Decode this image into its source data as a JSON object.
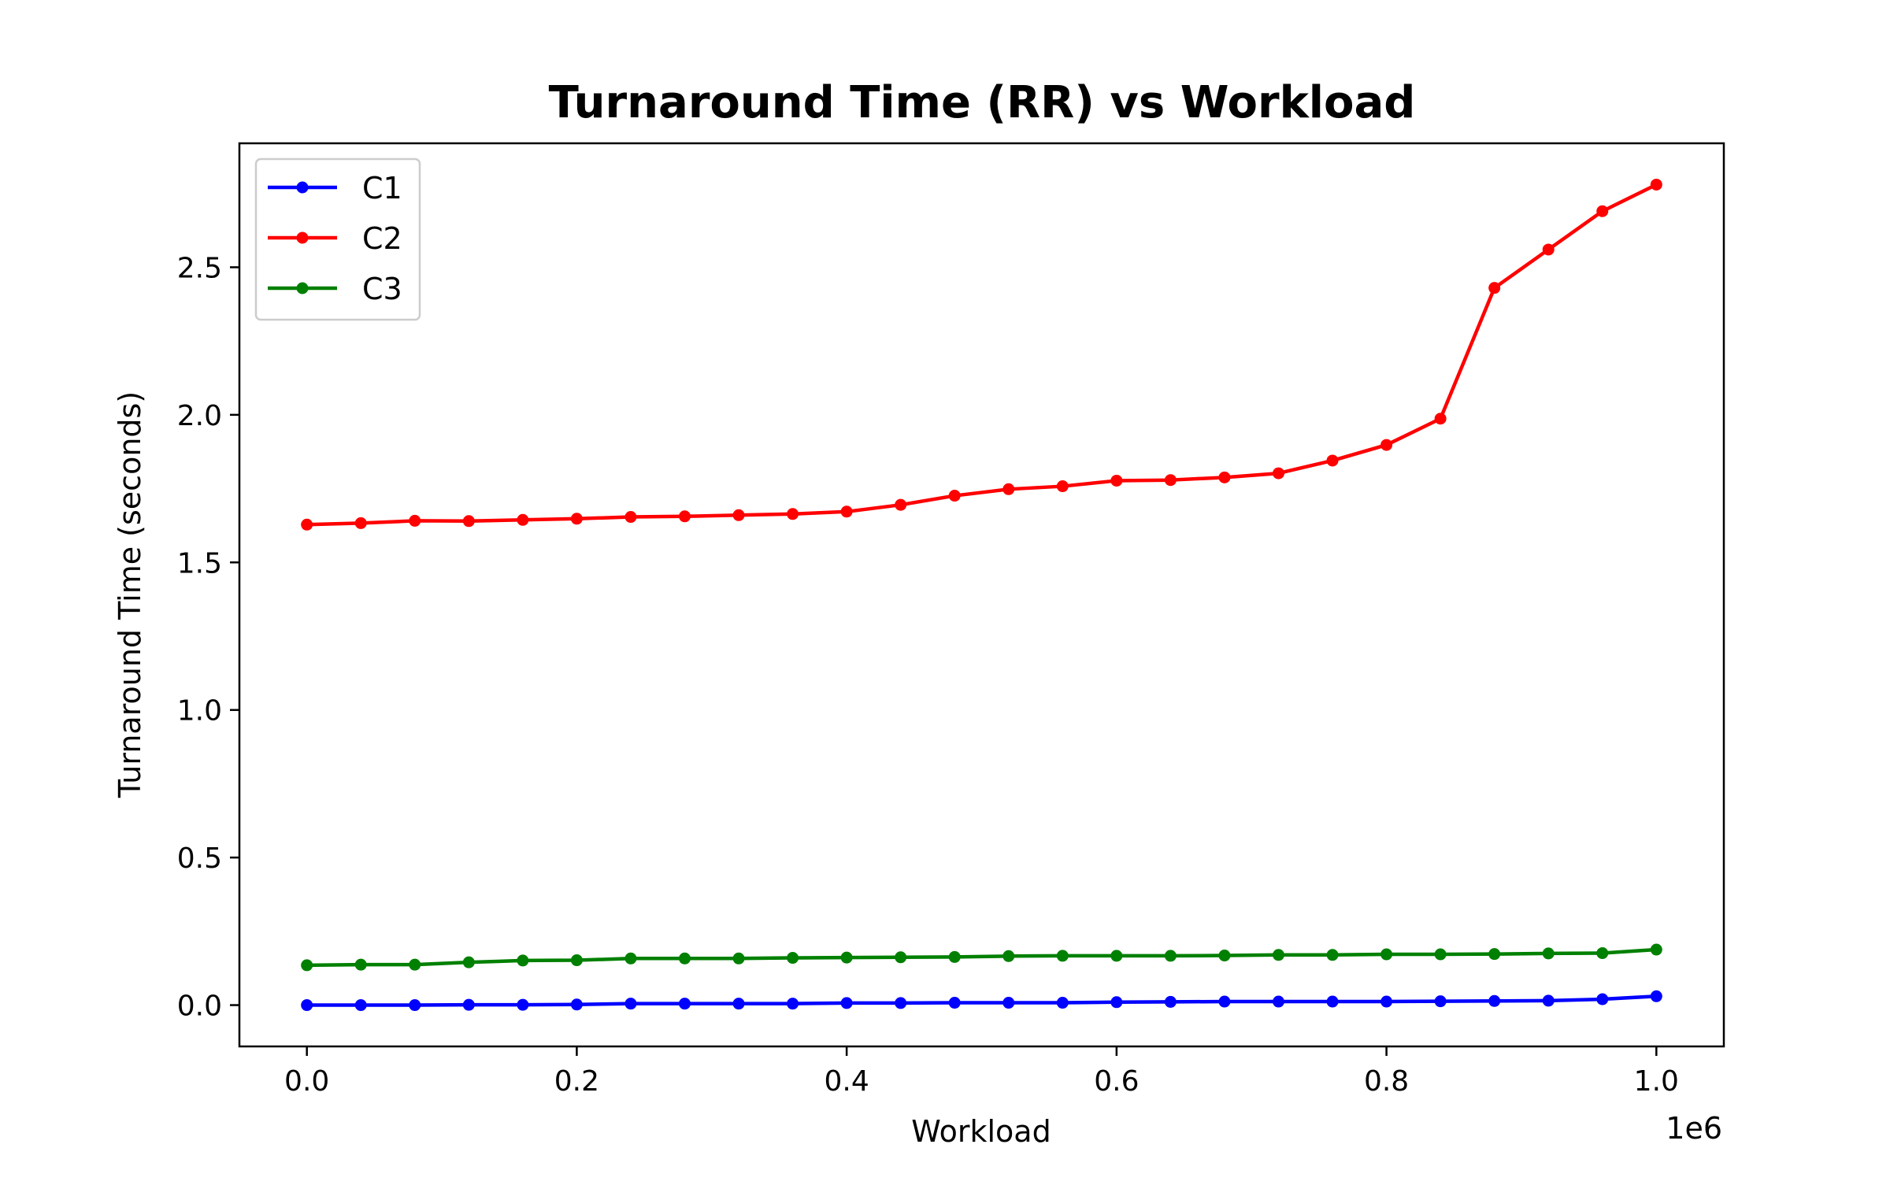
{
  "chart_data": {
    "type": "line",
    "title": "Turnaround Time (RR) vs Workload",
    "xlabel": "Workload",
    "ylabel": "Turnaround Time (seconds)",
    "x_offset_label": "1e6",
    "xlim": [
      -0.05,
      1.05
    ],
    "ylim": [
      -0.14,
      2.92
    ],
    "x_ticks": [
      0.0,
      0.2,
      0.4,
      0.6,
      0.8,
      1.0
    ],
    "x_tick_labels": [
      "0.0",
      "0.2",
      "0.4",
      "0.6",
      "0.8",
      "1.0"
    ],
    "y_ticks": [
      0.0,
      0.5,
      1.0,
      1.5,
      2.0,
      2.5
    ],
    "y_tick_labels": [
      "0.0",
      "0.5",
      "1.0",
      "1.5",
      "2.0",
      "2.5"
    ],
    "grid": false,
    "legend_position": "top-left",
    "x": [
      0.0,
      0.04,
      0.08,
      0.12,
      0.16,
      0.2,
      0.24,
      0.28,
      0.32,
      0.36,
      0.4,
      0.44,
      0.48,
      0.52,
      0.56,
      0.6,
      0.64,
      0.68,
      0.72,
      0.76,
      0.8,
      0.84,
      0.88,
      0.92,
      0.96,
      1.0
    ],
    "series": [
      {
        "name": "C1",
        "color": "#0000ff",
        "values": [
          0.0,
          0.0,
          0.0,
          0.001,
          0.001,
          0.002,
          0.005,
          0.005,
          0.005,
          0.005,
          0.007,
          0.007,
          0.008,
          0.008,
          0.008,
          0.01,
          0.011,
          0.012,
          0.012,
          0.012,
          0.012,
          0.013,
          0.014,
          0.015,
          0.02,
          0.03
        ]
      },
      {
        "name": "C2",
        "color": "#ff0000",
        "values": [
          1.628,
          1.633,
          1.641,
          1.64,
          1.644,
          1.648,
          1.654,
          1.656,
          1.66,
          1.664,
          1.672,
          1.695,
          1.726,
          1.748,
          1.758,
          1.777,
          1.779,
          1.788,
          1.802,
          1.845,
          1.898,
          1.987,
          2.43,
          2.56,
          2.69,
          2.78
        ]
      },
      {
        "name": "C3",
        "color": "#008000",
        "values": [
          0.135,
          0.137,
          0.137,
          0.145,
          0.151,
          0.152,
          0.158,
          0.158,
          0.158,
          0.16,
          0.161,
          0.162,
          0.163,
          0.166,
          0.167,
          0.167,
          0.167,
          0.168,
          0.17,
          0.17,
          0.172,
          0.172,
          0.173,
          0.175,
          0.176,
          0.188
        ]
      }
    ]
  }
}
